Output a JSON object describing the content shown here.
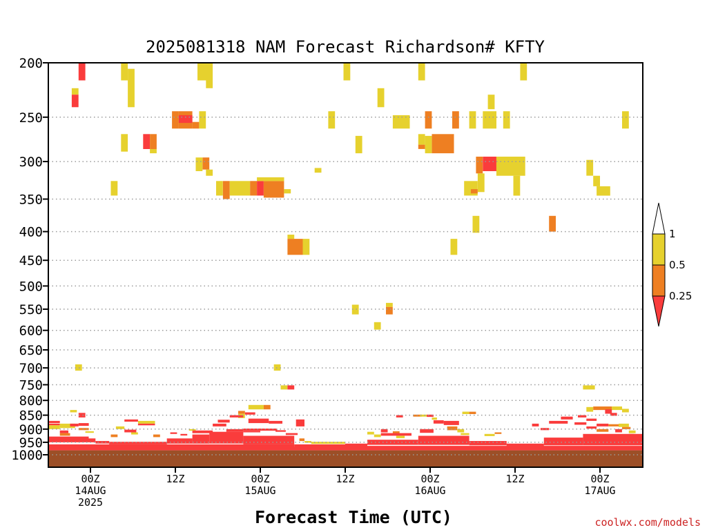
{
  "chart_data": {
    "type": "heatmap",
    "title": "2025081318 NAM Forecast Richardson# KFTY",
    "xlabel": "Forecast Time (UTC)",
    "ylabel": "",
    "credit": "coolwx.com/models",
    "y_scale": "log",
    "y_inverted": true,
    "ylim": [
      200,
      1000
    ],
    "y_ticks": [
      200,
      250,
      300,
      350,
      400,
      450,
      500,
      550,
      600,
      650,
      700,
      750,
      800,
      850,
      900,
      950,
      1000
    ],
    "gridlines": "dotted horizontal at each pressure tick",
    "xlim_hours": [
      -5,
      65
    ],
    "x_ticks": [
      {
        "hour": 0,
        "lines": [
          "00Z",
          "14AUG",
          "2025"
        ]
      },
      {
        "hour": 10,
        "lines": [
          "12Z"
        ]
      },
      {
        "hour": 20,
        "lines": [
          "00Z",
          "15AUG"
        ]
      },
      {
        "hour": 30,
        "lines": [
          "12Z"
        ]
      },
      {
        "hour": 40,
        "lines": [
          "00Z",
          "16AUG"
        ]
      },
      {
        "hour": 50,
        "lines": [
          "12Z"
        ]
      },
      {
        "hour": 60,
        "lines": [
          "00Z",
          "17AUG"
        ]
      }
    ],
    "colorbar": {
      "placement": "right",
      "labels": [
        "1",
        "0.5",
        "0.25"
      ],
      "bins": [
        {
          "range": "0.5–1",
          "color": "#e6d12e"
        },
        {
          "range": "0.25–0.5",
          "color": "#ee7f22"
        },
        {
          "range": "<0.25",
          "color": "#fa3c3c"
        }
      ],
      "over_color": "#ffffff"
    },
    "colors": {
      "low": "#fa3c3c",
      "mid": "#ee7f22",
      "high": "#e6d12e",
      "ground": "#9c4f27"
    },
    "ground_from_hPa": 982,
    "cells_units": "x0/x1 forecast hour (each grid unit ≈ 1.2 h), p0/p1 hPa, c category",
    "cells": [
      [
        -1.4,
        -0.6,
        200,
        215,
        "r"
      ],
      [
        -2.2,
        -1.4,
        222,
        228,
        "y"
      ],
      [
        -2.2,
        -1.4,
        228,
        240,
        "r"
      ],
      [
        3.6,
        4.4,
        200,
        215,
        "y"
      ],
      [
        4.4,
        5.2,
        205,
        240,
        "y"
      ],
      [
        12.6,
        14.4,
        200,
        215,
        "y"
      ],
      [
        13.6,
        14.4,
        215,
        222,
        "y"
      ],
      [
        29.8,
        30.6,
        200,
        215,
        "y"
      ],
      [
        38.6,
        39.4,
        200,
        215,
        "y"
      ],
      [
        33.8,
        34.6,
        222,
        240,
        "y"
      ],
      [
        50.6,
        51.4,
        200,
        215,
        "y"
      ],
      [
        46.8,
        47.6,
        228,
        242,
        "y"
      ],
      [
        9.6,
        10.4,
        244,
        262,
        "o"
      ],
      [
        10.4,
        12.0,
        244,
        262,
        "o"
      ],
      [
        10.4,
        12.0,
        248,
        256,
        "r"
      ],
      [
        12.0,
        12.8,
        255,
        262,
        "o"
      ],
      [
        12.8,
        13.6,
        244,
        262,
        "y"
      ],
      [
        28.0,
        28.8,
        244,
        262,
        "y"
      ],
      [
        35.6,
        37.6,
        248,
        262,
        "y"
      ],
      [
        39.4,
        40.2,
        244,
        262,
        "o"
      ],
      [
        42.6,
        43.4,
        244,
        262,
        "o"
      ],
      [
        44.6,
        45.4,
        244,
        262,
        "y"
      ],
      [
        46.2,
        47.8,
        244,
        262,
        "y"
      ],
      [
        48.6,
        49.4,
        244,
        262,
        "y"
      ],
      [
        62.6,
        63.4,
        244,
        262,
        "y"
      ],
      [
        3.6,
        4.4,
        268,
        288,
        "y"
      ],
      [
        6.2,
        7.0,
        268,
        285,
        "r"
      ],
      [
        7.0,
        7.8,
        268,
        285,
        "o"
      ],
      [
        7.0,
        7.8,
        285,
        290,
        "y"
      ],
      [
        31.2,
        32.0,
        270,
        290,
        "y"
      ],
      [
        38.6,
        39.4,
        268,
        280,
        "y"
      ],
      [
        38.6,
        39.4,
        280,
        285,
        "o"
      ],
      [
        39.4,
        40.2,
        270,
        290,
        "y"
      ],
      [
        40.2,
        42.8,
        268,
        290,
        "o"
      ],
      [
        12.4,
        13.2,
        295,
        312,
        "y"
      ],
      [
        13.2,
        14.0,
        295,
        310,
        "o"
      ],
      [
        13.6,
        14.4,
        310,
        318,
        "y"
      ],
      [
        26.4,
        27.2,
        308,
        314,
        "y"
      ],
      [
        45.4,
        46.2,
        294,
        315,
        "o"
      ],
      [
        46.2,
        47.8,
        294,
        312,
        "r"
      ],
      [
        47.8,
        51.2,
        294,
        318,
        "y"
      ],
      [
        58.4,
        59.2,
        298,
        318,
        "y"
      ],
      [
        2.4,
        3.2,
        325,
        345,
        "y"
      ],
      [
        14.8,
        15.6,
        325,
        345,
        "y"
      ],
      [
        15.6,
        16.4,
        325,
        350,
        "o"
      ],
      [
        16.4,
        18.8,
        325,
        345,
        "y"
      ],
      [
        18.8,
        19.6,
        325,
        345,
        "o"
      ],
      [
        19.6,
        20.4,
        325,
        345,
        "r"
      ],
      [
        20.4,
        22.8,
        325,
        348,
        "o"
      ],
      [
        19.6,
        22.8,
        320,
        325,
        "y"
      ],
      [
        22.8,
        23.6,
        336,
        342,
        "y"
      ],
      [
        44.0,
        44.8,
        325,
        345,
        "y"
      ],
      [
        44.8,
        45.6,
        325,
        345,
        "y"
      ],
      [
        44.8,
        45.6,
        336,
        342,
        "o"
      ],
      [
        45.6,
        46.4,
        315,
        340,
        "y"
      ],
      [
        49.8,
        50.6,
        318,
        345,
        "y"
      ],
      [
        59.2,
        60.0,
        318,
        332,
        "y"
      ],
      [
        59.6,
        61.2,
        332,
        345,
        "y"
      ],
      [
        45.0,
        45.8,
        375,
        402,
        "y"
      ],
      [
        54.0,
        54.8,
        375,
        400,
        "o"
      ],
      [
        23.2,
        24.0,
        405,
        412,
        "y"
      ],
      [
        23.2,
        25.0,
        412,
        440,
        "o"
      ],
      [
        25.0,
        25.8,
        412,
        440,
        "y"
      ],
      [
        42.4,
        43.2,
        412,
        440,
        "y"
      ],
      [
        30.8,
        31.6,
        540,
        562,
        "y"
      ],
      [
        34.8,
        35.6,
        536,
        545,
        "y"
      ],
      [
        34.8,
        35.6,
        545,
        562,
        "o"
      ],
      [
        33.4,
        34.2,
        580,
        598,
        "y"
      ],
      [
        -1.8,
        -1.0,
        690,
        708,
        "y"
      ],
      [
        21.6,
        22.4,
        690,
        708,
        "y"
      ],
      [
        22.4,
        23.2,
        752,
        765,
        "y"
      ],
      [
        23.2,
        24.0,
        752,
        765,
        "r"
      ],
      [
        58.0,
        59.4,
        752,
        765,
        "y"
      ],
      [
        18.6,
        20.4,
        815,
        830,
        "y"
      ],
      [
        20.4,
        21.2,
        815,
        830,
        "o"
      ],
      [
        58.4,
        59.2,
        822,
        838,
        "y"
      ],
      [
        59.2,
        61.4,
        820,
        832,
        "o"
      ],
      [
        61.4,
        62.6,
        820,
        832,
        "y"
      ],
      [
        62.6,
        63.4,
        828,
        840,
        "y"
      ],
      [
        -2.4,
        -1.6,
        832,
        840,
        "y"
      ],
      [
        -1.4,
        -0.6,
        842,
        858,
        "r"
      ],
      [
        17.4,
        18.2,
        835,
        845,
        "o"
      ],
      [
        17.4,
        18.2,
        845,
        860,
        "y"
      ],
      [
        18.2,
        19.4,
        840,
        848,
        "r"
      ],
      [
        24.2,
        25.2,
        865,
        890,
        "r"
      ],
      [
        60.6,
        61.4,
        830,
        845,
        "r"
      ],
      [
        61.2,
        62.0,
        842,
        852,
        "r"
      ],
      [
        43.8,
        44.6,
        838,
        846,
        "y"
      ],
      [
        44.6,
        45.4,
        838,
        846,
        "o"
      ],
      [
        4.0,
        5.6,
        865,
        873,
        "r"
      ],
      [
        5.6,
        7.6,
        870,
        880,
        "y"
      ],
      [
        5.6,
        7.6,
        880,
        886,
        "r"
      ],
      [
        3.0,
        4.0,
        890,
        900,
        "y"
      ],
      [
        4.0,
        5.4,
        902,
        912,
        "r"
      ],
      [
        -5.0,
        -3.6,
        870,
        878,
        "r"
      ],
      [
        -5.0,
        -3.6,
        880,
        886,
        "r"
      ],
      [
        -5.0,
        -3.6,
        886,
        900,
        "y"
      ],
      [
        -3.6,
        -1.8,
        880,
        896,
        "y"
      ],
      [
        -3.6,
        -2.6,
        905,
        915,
        "r"
      ],
      [
        -3.6,
        -2.4,
        915,
        925,
        "o"
      ],
      [
        -2.4,
        -1.4,
        880,
        890,
        "r"
      ],
      [
        -1.4,
        -0.2,
        878,
        888,
        "r"
      ],
      [
        -1.4,
        -0.2,
        896,
        904,
        "o"
      ],
      [
        -0.6,
        0.4,
        908,
        914,
        "y"
      ],
      [
        4.8,
        5.6,
        912,
        920,
        "y"
      ],
      [
        2.4,
        3.2,
        920,
        930,
        "o"
      ],
      [
        7.4,
        8.2,
        920,
        930,
        "o"
      ],
      [
        9.4,
        10.2,
        912,
        918,
        "r"
      ],
      [
        10.6,
        11.4,
        918,
        924,
        "r"
      ],
      [
        11.6,
        12.4,
        900,
        906,
        "y"
      ],
      [
        12.0,
        14.4,
        905,
        915,
        "r"
      ],
      [
        14.4,
        16.0,
        880,
        890,
        "r"
      ],
      [
        15.0,
        16.4,
        866,
        876,
        "r"
      ],
      [
        16.4,
        18.0,
        850,
        858,
        "r"
      ],
      [
        16.0,
        18.0,
        900,
        910,
        "r"
      ],
      [
        18.6,
        21.0,
        862,
        878,
        "r"
      ],
      [
        21.0,
        22.6,
        870,
        880,
        "r"
      ],
      [
        18.0,
        22.0,
        898,
        906,
        "r"
      ],
      [
        18.0,
        20.0,
        906,
        912,
        "r"
      ],
      [
        21.8,
        23.0,
        904,
        910,
        "r"
      ],
      [
        23.0,
        24.4,
        915,
        922,
        "r"
      ],
      [
        24.6,
        25.2,
        935,
        945,
        "o"
      ],
      [
        25.2,
        26.0,
        945,
        952,
        "y"
      ],
      [
        26.0,
        28.0,
        948,
        956,
        "y"
      ],
      [
        28.0,
        30.0,
        948,
        956,
        "y"
      ],
      [
        33.4,
        34.2,
        920,
        930,
        "y"
      ],
      [
        34.2,
        35.0,
        900,
        912,
        "r"
      ],
      [
        35.6,
        36.4,
        908,
        916,
        "o"
      ],
      [
        36.0,
        37.0,
        925,
        934,
        "y"
      ],
      [
        34.2,
        37.8,
        915,
        925,
        "r"
      ],
      [
        38.8,
        40.4,
        900,
        914,
        "r"
      ],
      [
        40.4,
        41.6,
        868,
        880,
        "r"
      ],
      [
        41.6,
        43.4,
        870,
        885,
        "r"
      ],
      [
        42.0,
        43.2,
        890,
        904,
        "o"
      ],
      [
        43.2,
        44.0,
        900,
        912,
        "y"
      ],
      [
        43.6,
        44.6,
        915,
        922,
        "y"
      ],
      [
        40.2,
        40.8,
        858,
        866,
        "y"
      ],
      [
        38.0,
        39.0,
        848,
        855,
        "o"
      ],
      [
        36.0,
        36.8,
        850,
        858,
        "r"
      ],
      [
        38.8,
        39.6,
        848,
        855,
        "y"
      ],
      [
        39.6,
        40.4,
        848,
        856,
        "r"
      ],
      [
        43.8,
        44.6,
        838,
        846,
        "y"
      ],
      [
        52.0,
        52.8,
        880,
        890,
        "r"
      ],
      [
        53.0,
        54.0,
        896,
        904,
        "r"
      ],
      [
        54.0,
        56.2,
        870,
        880,
        "r"
      ],
      [
        55.4,
        56.8,
        855,
        865,
        "r"
      ],
      [
        57.0,
        58.4,
        875,
        884,
        "r"
      ],
      [
        57.4,
        58.4,
        850,
        858,
        "r"
      ],
      [
        58.4,
        59.6,
        862,
        870,
        "r"
      ],
      [
        58.4,
        59.6,
        890,
        898,
        "r"
      ],
      [
        59.6,
        61.0,
        900,
        910,
        "o"
      ],
      [
        59.6,
        61.0,
        880,
        890,
        "r"
      ],
      [
        61.0,
        62.4,
        882,
        890,
        "o"
      ],
      [
        61.8,
        62.6,
        900,
        912,
        "r"
      ],
      [
        62.2,
        63.4,
        880,
        892,
        "y"
      ],
      [
        62.6,
        63.6,
        892,
        900,
        "o"
      ],
      [
        63.4,
        64.2,
        905,
        915,
        "y"
      ],
      [
        63.4,
        64.0,
        918,
        928,
        "o"
      ],
      [
        62.4,
        63.4,
        932,
        940,
        "y"
      ],
      [
        46.4,
        47.6,
        918,
        926,
        "y"
      ],
      [
        47.6,
        48.4,
        912,
        918,
        "o"
      ],
      [
        32.6,
        33.4,
        910,
        920,
        "y"
      ],
      [
        -5.0,
        -0.2,
        928,
        950,
        "r"
      ],
      [
        -0.2,
        0.6,
        935,
        950,
        "r"
      ],
      [
        0.6,
        2.2,
        945,
        955,
        "r"
      ],
      [
        2.2,
        9.0,
        948,
        958,
        "r"
      ],
      [
        9.0,
        12.0,
        935,
        955,
        "r"
      ],
      [
        12.0,
        14.0,
        920,
        955,
        "r"
      ],
      [
        14.0,
        18.0,
        910,
        955,
        "r"
      ],
      [
        18.0,
        24.0,
        925,
        958,
        "r"
      ],
      [
        24.0,
        30.0,
        958,
        965,
        "r"
      ],
      [
        30.0,
        32.6,
        955,
        965,
        "r"
      ],
      [
        32.6,
        38.6,
        940,
        960,
        "r"
      ],
      [
        38.6,
        44.6,
        925,
        960,
        "r"
      ],
      [
        44.6,
        49.0,
        945,
        962,
        "r"
      ],
      [
        49.0,
        53.4,
        955,
        965,
        "r"
      ],
      [
        53.4,
        58.0,
        932,
        962,
        "r"
      ],
      [
        58.0,
        65.0,
        918,
        962,
        "r"
      ],
      [
        -5.0,
        24.0,
        958,
        968,
        "r"
      ],
      [
        24.0,
        65.0,
        964,
        972,
        "r"
      ],
      [
        -5.0,
        65.0,
        968,
        982,
        "r"
      ]
    ]
  }
}
